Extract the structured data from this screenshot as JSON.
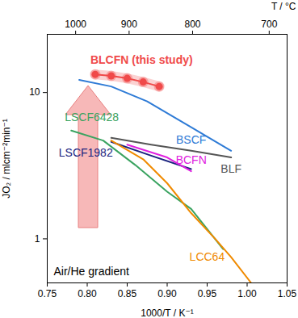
{
  "chart_data": {
    "type": "line",
    "xlabel": "1000/T / K⁻¹",
    "ylabel": "JO₂ / mlcm⁻²min⁻¹",
    "x2label": "T / °C",
    "annotations": [
      "Air/He gradient"
    ],
    "log": "y",
    "xlim": [
      0.75,
      1.05
    ],
    "xticks": [
      0.75,
      {
        "value": 0.8,
        "label": "0.80"
      },
      0.85,
      {
        "value": 0.9,
        "label": "0.90"
      },
      0.95,
      {
        "value": 1.0,
        "label": "1.00"
      },
      1.05
    ],
    "x2ticks": [
      {
        "value": 0.7855,
        "label": "1000"
      },
      {
        "value": 0.8524,
        "label": "900"
      },
      {
        "value": 0.9318,
        "label": "800"
      },
      {
        "value": 1.0276,
        "label": "700"
      }
    ],
    "ylim": [
      0.5,
      25
    ],
    "yticks": [
      1,
      10
    ],
    "series": [
      {
        "name": "BLCFN (this study)",
        "color": "#f04a4a",
        "marker": "circle",
        "x": [
          0.81,
          0.83,
          0.85,
          0.87,
          0.89
        ],
        "values": [
          13.3,
          13.0,
          12.5,
          11.8,
          11.0
        ]
      },
      {
        "name": "BSCF",
        "color": "#2e7bd6",
        "x": [
          0.79,
          0.83,
          0.875,
          0.93,
          0.98
        ],
        "values": [
          12.2,
          11.0,
          8.7,
          5.8,
          4.0
        ]
      },
      {
        "name": "LSCF6428",
        "color": "#3aa360",
        "x": [
          0.78,
          0.82,
          0.86,
          0.9,
          0.93,
          0.97
        ],
        "values": [
          5.5,
          4.7,
          3.2,
          2.1,
          1.6,
          0.85
        ]
      },
      {
        "name": "LSCF1982",
        "color": "#1a237e",
        "x": [
          0.83,
          0.88,
          0.93
        ],
        "values": [
          4.6,
          3.7,
          3.0
        ]
      },
      {
        "name": "BCFN",
        "color": "#e020e0",
        "x": [
          0.85,
          0.9,
          0.93
        ],
        "values": [
          4.4,
          3.6,
          2.9
        ]
      },
      {
        "name": "BLF",
        "color": "#555555",
        "x": [
          0.83,
          0.88,
          0.93,
          0.98
        ],
        "values": [
          4.9,
          4.4,
          4.0,
          3.6
        ]
      },
      {
        "name": "LCC64",
        "color": "#f08a00",
        "x": [
          0.83,
          0.87,
          0.9,
          0.93,
          0.96,
          0.98,
          1.005
        ],
        "values": [
          4.7,
          3.5,
          2.4,
          1.5,
          1.0,
          0.75,
          0.5
        ]
      }
    ]
  }
}
